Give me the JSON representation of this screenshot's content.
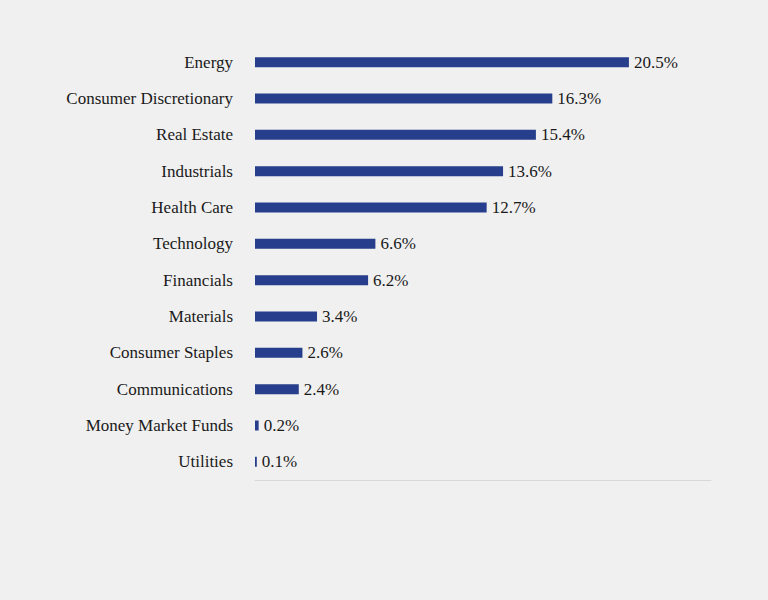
{
  "chart_data": {
    "type": "bar",
    "orientation": "horizontal",
    "categories": [
      "Energy",
      "Consumer Discretionary",
      "Real Estate",
      "Industrials",
      "Health Care",
      "Technology",
      "Financials",
      "Materials",
      "Consumer Staples",
      "Communications",
      "Money Market Funds",
      "Utilities"
    ],
    "values": [
      20.5,
      16.3,
      15.4,
      13.6,
      12.7,
      6.6,
      6.2,
      3.4,
      2.6,
      2.4,
      0.2,
      0.1
    ],
    "value_labels": [
      "20.5%",
      "16.3%",
      "15.4%",
      "13.6%",
      "12.7%",
      "6.6%",
      "6.2%",
      "3.4%",
      "2.6%",
      "2.4%",
      "0.2%",
      "0.1%"
    ],
    "color": "#263e8b",
    "xlim": [
      0,
      25
    ],
    "data_labels": true,
    "tick_labels": "y",
    "grid": false
  }
}
